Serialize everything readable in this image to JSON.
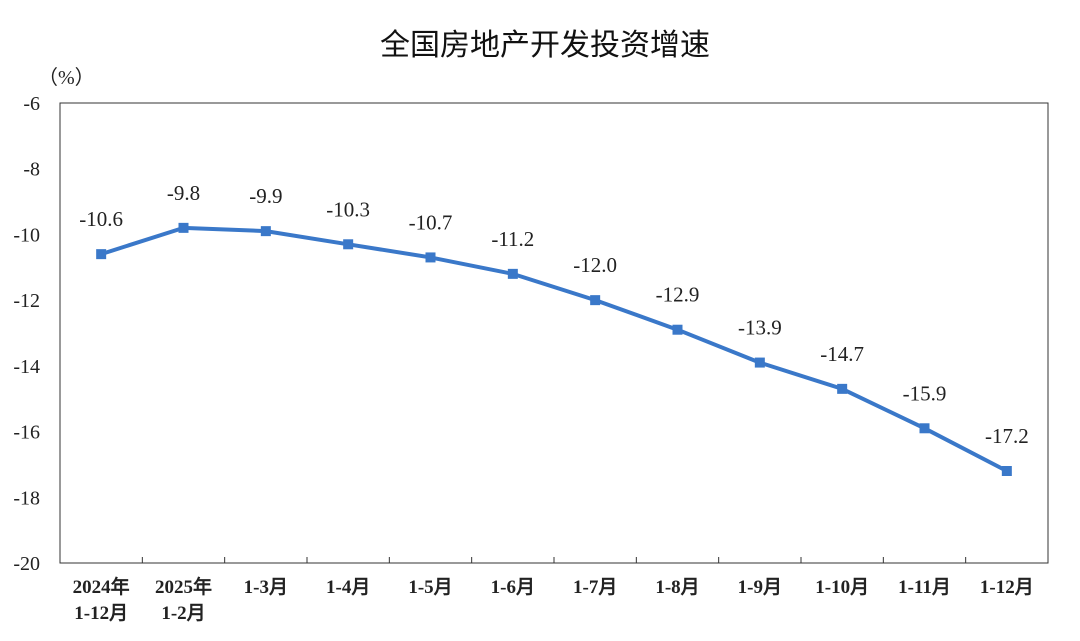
{
  "chart_data": {
    "type": "line",
    "title": "全国房地产开发投资增速",
    "unit_label": "（%）",
    "ylim": [
      -20,
      -6
    ],
    "yticks": [
      "-6",
      "-8",
      "-10",
      "-12",
      "-14",
      "-16",
      "-18",
      "-20"
    ],
    "ytick_values": [
      -6,
      -8,
      -10,
      -12,
      -14,
      -16,
      -18,
      -20
    ],
    "categories": [
      [
        "2024年",
        "1-12月"
      ],
      [
        "2025年",
        "1-2月"
      ],
      [
        "1-3月"
      ],
      [
        "1-4月"
      ],
      [
        "1-5月"
      ],
      [
        "1-6月"
      ],
      [
        "1-7月"
      ],
      [
        "1-8月"
      ],
      [
        "1-9月"
      ],
      [
        "1-10月"
      ],
      [
        "1-11月"
      ],
      [
        "1-12月"
      ]
    ],
    "values": [
      -10.6,
      -9.8,
      -9.9,
      -10.3,
      -10.7,
      -11.2,
      -12.0,
      -12.9,
      -13.9,
      -14.7,
      -15.9,
      -17.2
    ],
    "data_labels": [
      "-10.6",
      "-9.8",
      "-9.9",
      "-10.3",
      "-10.7",
      "-11.2",
      "-12.0",
      "-12.9",
      "-13.9",
      "-14.7",
      "-15.9",
      "-17.2"
    ],
    "grid": false,
    "legend": "none",
    "line_color": "#3a78c9"
  }
}
